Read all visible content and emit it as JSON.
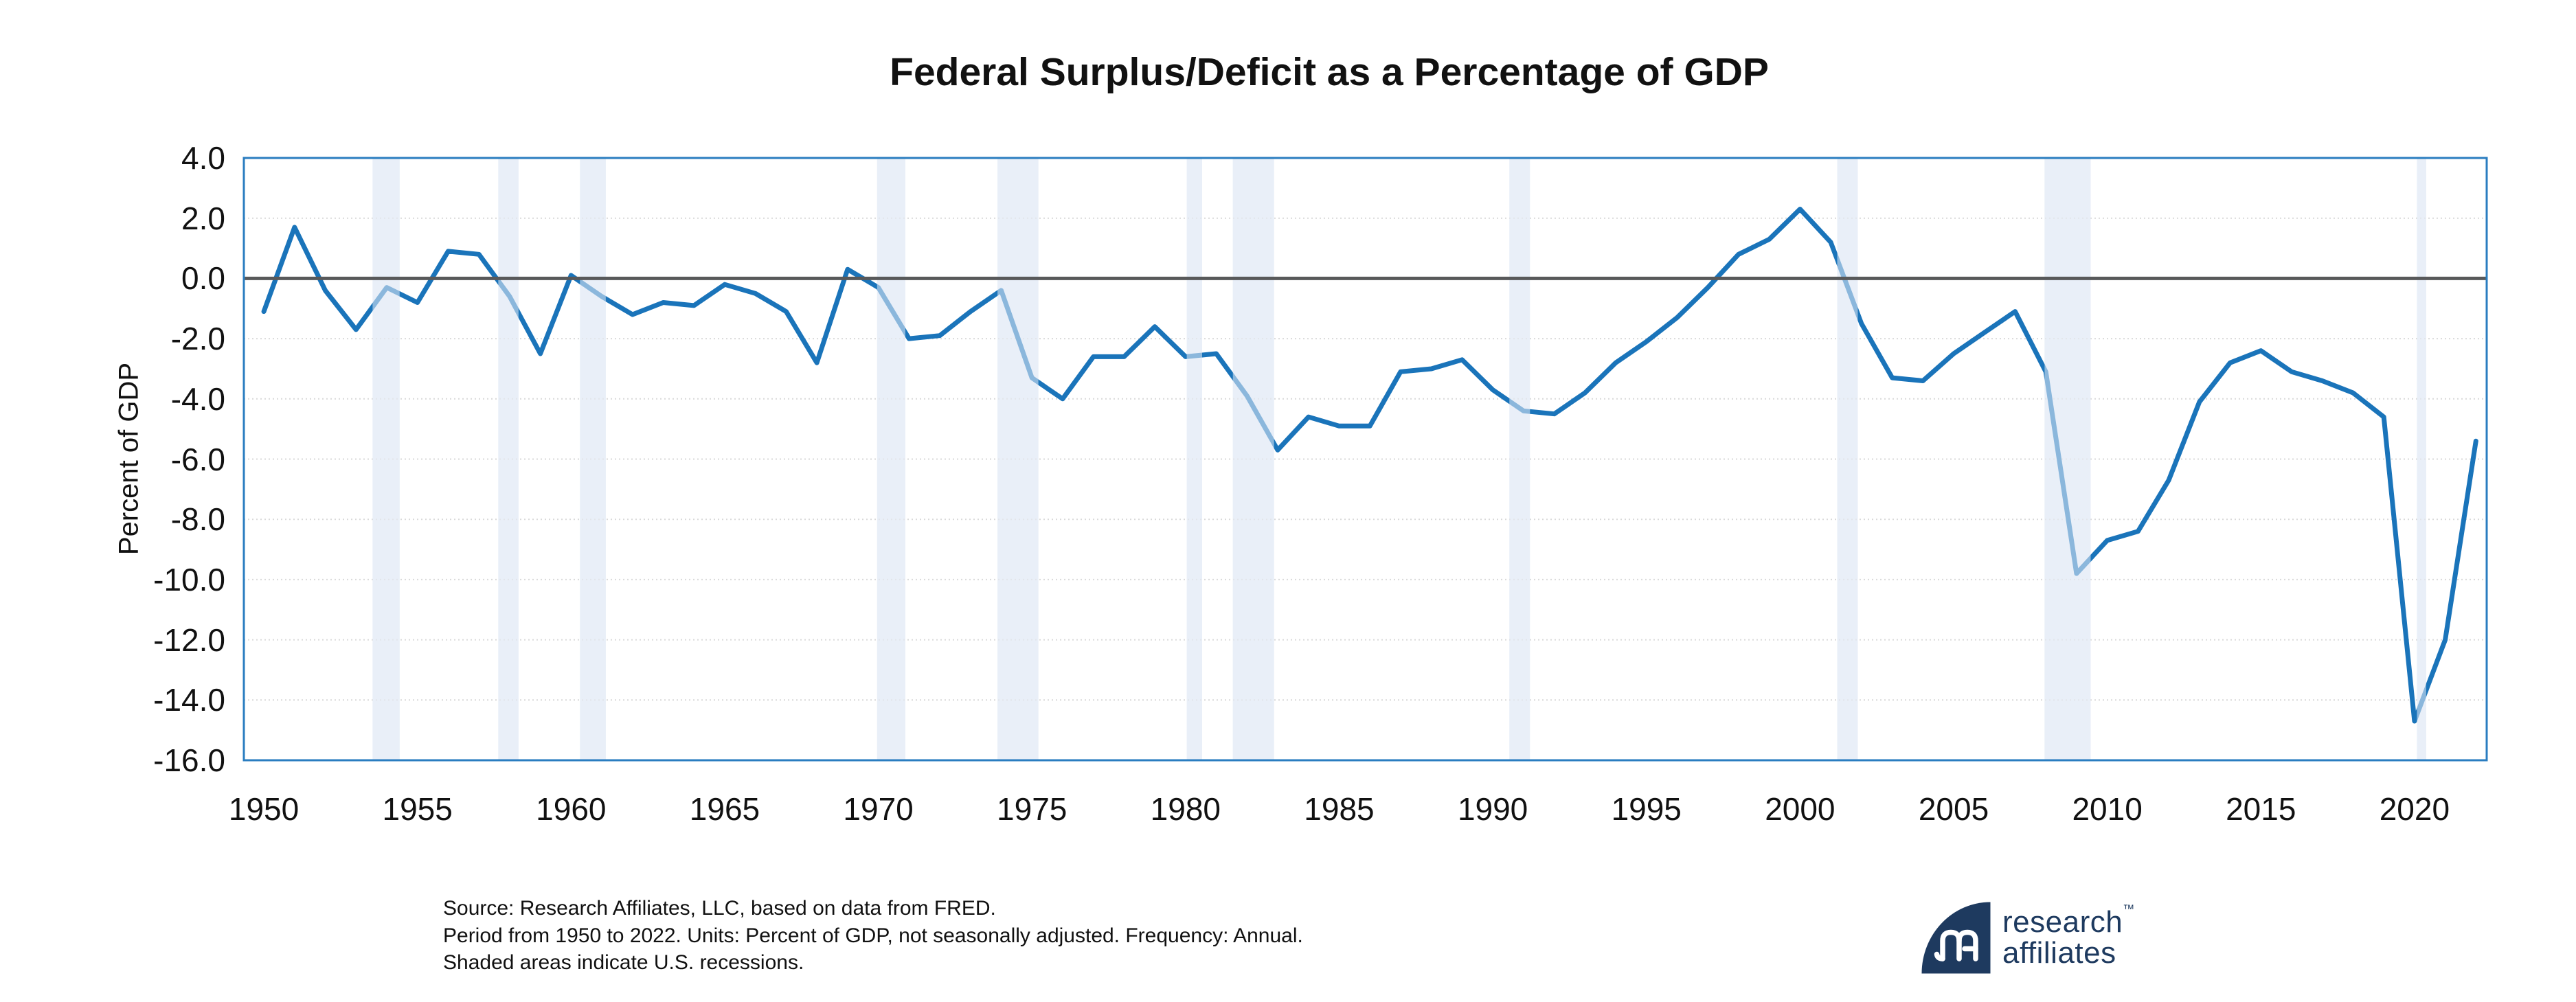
{
  "title": "Federal Surplus/Deficit as a Percentage of GDP",
  "y_axis_label": "Percent of GDP",
  "source": {
    "line1": "Source: Research Affiliates, LLC, based on data from FRED.",
    "line2": "Period from 1950 to 2022. Units: Percent of GDP, not seasonally adjusted.  Frequency: Annual.",
    "line3": "Shaded areas indicate U.S. recessions."
  },
  "logo": {
    "word1": "research",
    "word2": "affiliates",
    "trademark": "™"
  },
  "colors": {
    "line": "#1a74ba",
    "plot_border": "#2a7dc0",
    "zero_line": "#58595a",
    "gridline": "#d9d9d9",
    "recession_band": "#e9eff8",
    "recession_band_overlay": "rgba(233,239,248,0.55)",
    "text": "#111111",
    "logo_navy": "#1e3a5f"
  },
  "chart_data": {
    "type": "line",
    "title": "Federal Surplus/Deficit as a Percentage of GDP",
    "xlabel": "",
    "ylabel": "Percent of GDP",
    "series_name": "Federal surplus/deficit as % of GDP",
    "legend": "none",
    "grid": "horizontal-dotted",
    "zero_line": 0,
    "xlim": [
      1949.35,
      2022.35
    ],
    "ylim": [
      -16,
      4
    ],
    "x": [
      1950,
      1951,
      1952,
      1953,
      1954,
      1955,
      1956,
      1957,
      1958,
      1959,
      1960,
      1961,
      1962,
      1963,
      1964,
      1965,
      1966,
      1967,
      1968,
      1969,
      1970,
      1971,
      1972,
      1973,
      1974,
      1975,
      1976,
      1977,
      1978,
      1979,
      1980,
      1981,
      1982,
      1983,
      1984,
      1985,
      1986,
      1987,
      1988,
      1989,
      1990,
      1991,
      1992,
      1993,
      1994,
      1995,
      1996,
      1997,
      1998,
      1999,
      2000,
      2001,
      2002,
      2003,
      2004,
      2005,
      2006,
      2007,
      2008,
      2009,
      2010,
      2011,
      2012,
      2013,
      2014,
      2015,
      2016,
      2017,
      2018,
      2019,
      2020,
      2021,
      2022
    ],
    "values": [
      -1.1,
      1.7,
      -0.4,
      -1.7,
      -0.3,
      -0.8,
      0.9,
      0.8,
      -0.6,
      -2.5,
      0.1,
      -0.6,
      -1.2,
      -0.8,
      -0.9,
      -0.2,
      -0.5,
      -1.1,
      -2.8,
      0.3,
      -0.3,
      -2.0,
      -1.9,
      -1.1,
      -0.4,
      -3.3,
      -4.0,
      -2.6,
      -2.6,
      -1.6,
      -2.6,
      -2.5,
      -3.9,
      -5.7,
      -4.6,
      -4.9,
      -4.9,
      -3.1,
      -3.0,
      -2.7,
      -3.7,
      -4.4,
      -4.5,
      -3.8,
      -2.8,
      -2.1,
      -1.3,
      -0.3,
      0.8,
      1.3,
      2.3,
      1.2,
      -1.5,
      -3.3,
      -3.4,
      -2.5,
      -1.8,
      -1.1,
      -3.1,
      -9.8,
      -8.7,
      -8.4,
      -6.7,
      -4.1,
      -2.8,
      -2.4,
      -3.1,
      -3.4,
      -3.8,
      -4.6,
      -14.7,
      -12.0,
      -5.4
    ],
    "ytick_values": [
      4,
      2,
      0,
      -2,
      -4,
      -6,
      -8,
      -10,
      -12,
      -14,
      -16
    ],
    "ytick_labels": [
      "4.0",
      "2.0",
      "0.0",
      "-2.0",
      "-4.0",
      "-6.0",
      "-8.0",
      "-10.0",
      "-12.0",
      "-14.0",
      "-16.0"
    ],
    "xtick_values": [
      1950,
      1955,
      1960,
      1965,
      1970,
      1975,
      1980,
      1985,
      1990,
      1995,
      2000,
      2005,
      2010,
      2015,
      2020
    ],
    "xtick_labels": [
      "1950",
      "1955",
      "1960",
      "1965",
      "1970",
      "1975",
      "1980",
      "1985",
      "1990",
      "1995",
      "2000",
      "2005",
      "2010",
      "2015",
      "2020"
    ],
    "recession_bands": [
      [
        1953.54,
        1954.42
      ],
      [
        1957.63,
        1958.29
      ],
      [
        1960.29,
        1961.13
      ],
      [
        1969.96,
        1970.88
      ],
      [
        1973.88,
        1975.21
      ],
      [
        1980.04,
        1980.54
      ],
      [
        1981.54,
        1982.88
      ],
      [
        1990.54,
        1991.21
      ],
      [
        2001.21,
        2001.88
      ],
      [
        2007.96,
        2009.46
      ],
      [
        2020.08,
        2020.38
      ]
    ]
  }
}
